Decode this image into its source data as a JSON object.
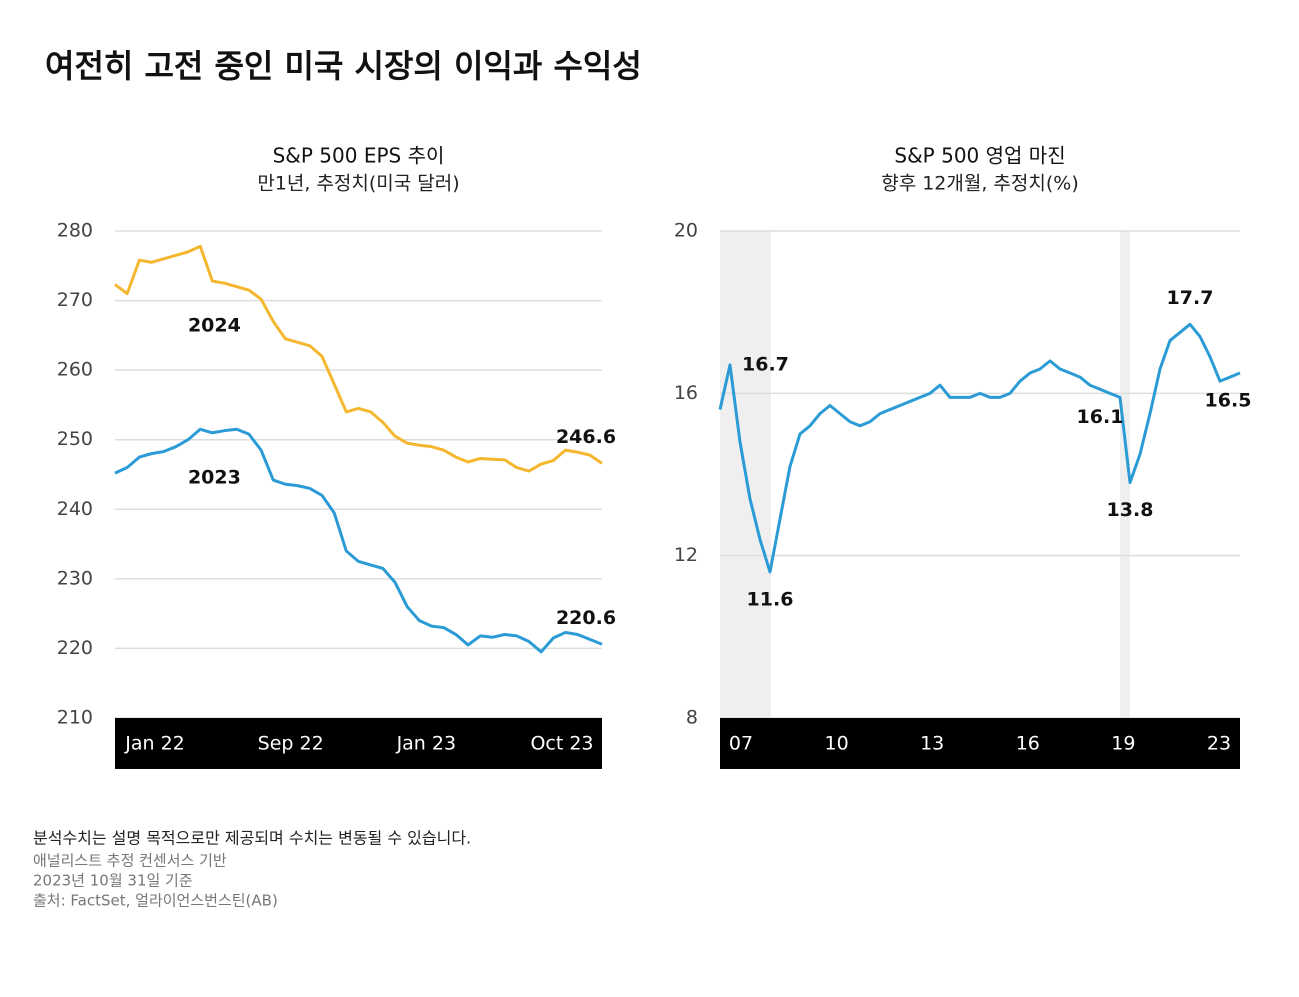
{
  "title": "여전히 고전 중인 미국 시장의 이익과 수익성",
  "notes": [
    "분석수치는 설명 목적으로만 제공되며 수치는 변동될 수 있습니다.",
    "애널리스트 추정 컨센서스 기반",
    "2023년 10월 31일 기준",
    "출처: FactSet, 얼라이언스번스틴(AB)"
  ],
  "chart_data": [
    {
      "type": "line",
      "title": "S&P 500 EPS 추이",
      "subtitle": "만1년, 추정치(미국 달러)",
      "xtick_labels": [
        "Jan 22",
        "Sep 22",
        "Jan 23",
        "Oct 23"
      ],
      "ylim": [
        210,
        280
      ],
      "yticks": [
        210,
        220,
        230,
        240,
        250,
        260,
        270,
        280
      ],
      "grid": true,
      "series": [
        {
          "name": "2024",
          "color": "#f4b72f",
          "values": [
            272.3,
            271,
            275.8,
            275.5,
            276,
            276.5,
            277,
            277.8,
            272.8,
            272.5,
            272,
            271.5,
            270.2,
            267,
            264.5,
            264,
            263.5,
            262,
            258,
            254,
            254.5,
            254,
            252.5,
            250.5,
            249.5,
            249.2,
            249,
            248.5,
            247.5,
            246.8,
            247.3,
            247.2,
            247.1,
            246,
            245.5,
            246.5,
            247,
            248.5,
            248.2,
            247.8,
            246.6
          ],
          "value_labels": [
            null,
            null,
            null,
            null,
            null,
            null,
            null,
            null,
            null,
            null,
            null,
            null,
            null,
            null,
            null,
            null,
            null,
            null,
            null,
            null,
            null,
            null,
            null,
            null,
            null,
            null,
            null,
            null,
            null,
            null,
            null,
            null,
            null,
            null,
            null,
            null,
            null,
            null,
            null,
            null,
            "246.6"
          ]
        },
        {
          "name": "2023",
          "color": "#2b9bd6",
          "values": [
            245.2,
            246,
            247.5,
            248,
            248.3,
            249,
            250,
            251.5,
            251,
            251.3,
            251.5,
            250.8,
            248.5,
            244.2,
            243.6,
            243.4,
            243,
            242,
            239.5,
            234,
            232.5,
            232,
            231.5,
            229.5,
            226,
            224,
            223.2,
            223,
            222,
            220.5,
            221.8,
            221.6,
            222,
            221.8,
            221,
            219.5,
            221.5,
            222.3,
            222,
            221.3,
            220.6
          ],
          "value_labels": [
            null,
            null,
            null,
            null,
            null,
            null,
            null,
            null,
            null,
            null,
            null,
            null,
            null,
            null,
            null,
            null,
            null,
            null,
            null,
            null,
            null,
            null,
            null,
            null,
            null,
            null,
            null,
            null,
            null,
            null,
            null,
            null,
            null,
            null,
            null,
            null,
            null,
            null,
            null,
            null,
            "220.6"
          ]
        }
      ]
    },
    {
      "type": "line",
      "title": "S&P 500 영업 마진",
      "subtitle": "향후 12개월, 추정치(%)",
      "xtick_labels": [
        "07",
        "10",
        "13",
        "16",
        "19",
        "23"
      ],
      "ylim": [
        8,
        20
      ],
      "yticks": [
        8,
        12,
        16,
        20
      ],
      "grid": true,
      "series": [
        {
          "color": "#2b9bd6",
          "values": [
            15.6,
            16.7,
            14.8,
            13.4,
            12.4,
            11.6,
            12.9,
            14.2,
            15.0,
            15.2,
            15.5,
            15.7,
            15.5,
            15.3,
            15.2,
            15.3,
            15.5,
            15.6,
            15.7,
            15.8,
            15.9,
            16.0,
            16.2,
            15.9,
            15.9,
            15.9,
            16.0,
            15.9,
            15.9,
            16.0,
            16.3,
            16.5,
            16.6,
            16.8,
            16.6,
            16.5,
            16.4,
            16.2,
            16.1,
            16.0,
            15.9,
            13.8,
            14.5,
            15.5,
            16.6,
            17.3,
            17.5,
            17.7,
            17.4,
            16.9,
            16.3,
            16.4,
            16.5
          ],
          "value_labels": [
            null,
            "16.7",
            null,
            null,
            null,
            "11.6",
            null,
            null,
            null,
            null,
            null,
            null,
            null,
            null,
            null,
            null,
            null,
            null,
            null,
            null,
            null,
            null,
            null,
            null,
            null,
            null,
            null,
            null,
            null,
            null,
            null,
            null,
            null,
            null,
            null,
            null,
            null,
            null,
            "16.1",
            null,
            null,
            "13.8",
            null,
            null,
            null,
            null,
            null,
            "17.7",
            null,
            null,
            null,
            null,
            "16.5"
          ]
        }
      ]
    }
  ]
}
